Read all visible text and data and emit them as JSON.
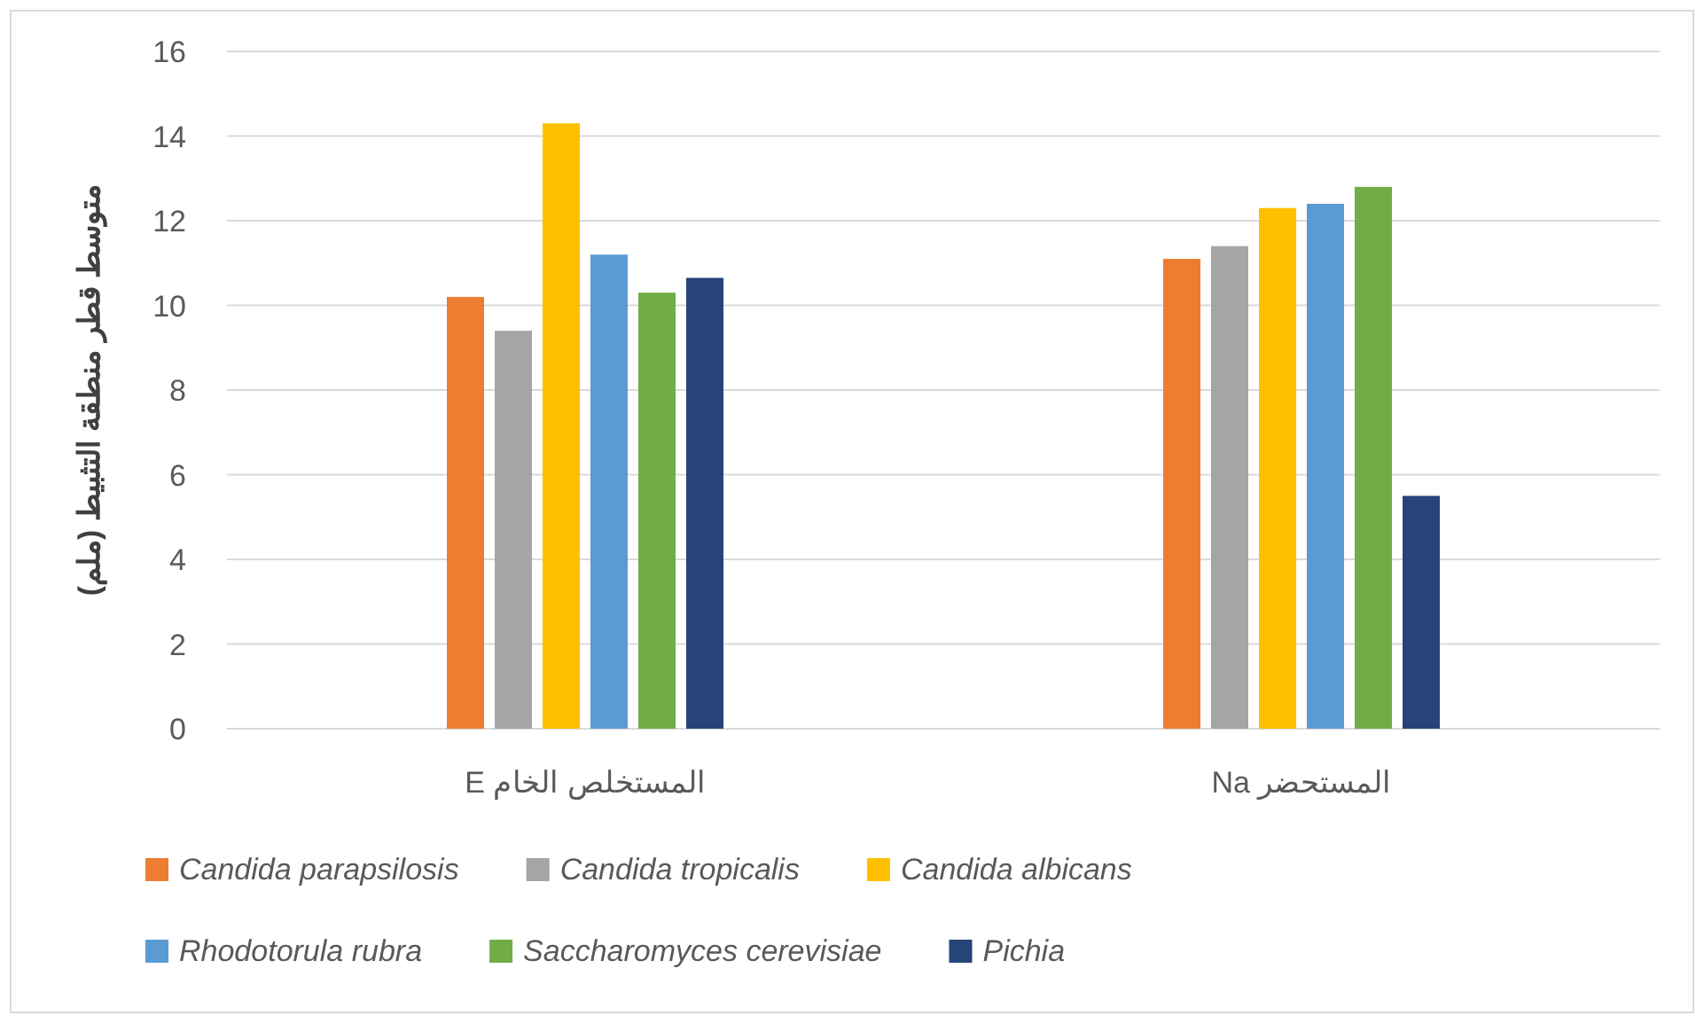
{
  "chart_data": {
    "type": "bar",
    "ylabel": "متوسط قطر منطقة التثبيط (ملم)",
    "categories": [
      "المستخلص الخام E",
      "المستحضر Na"
    ],
    "series": [
      {
        "name": "Candida parapsilosis",
        "color": "#ed7d31",
        "values": [
          10.2,
          11.1
        ]
      },
      {
        "name": "Candida tropicalis",
        "color": "#a5a5a5",
        "values": [
          9.4,
          11.4
        ]
      },
      {
        "name": "Candida albicans",
        "color": "#ffc000",
        "values": [
          14.3,
          12.3
        ]
      },
      {
        "name": "Rhodotorula rubra",
        "color": "#5b9bd5",
        "values": [
          11.2,
          12.4
        ]
      },
      {
        "name": "Saccharomyces cerevisiae",
        "color": "#70ad47",
        "values": [
          10.3,
          12.8
        ]
      },
      {
        "name": "Pichia",
        "color": "#264478",
        "values": [
          10.65,
          5.5
        ]
      }
    ],
    "ylim": [
      0,
      16
    ],
    "yticks": [
      0,
      2,
      4,
      6,
      8,
      10,
      12,
      14,
      16
    ],
    "grid": "y",
    "legend": "bottom"
  }
}
